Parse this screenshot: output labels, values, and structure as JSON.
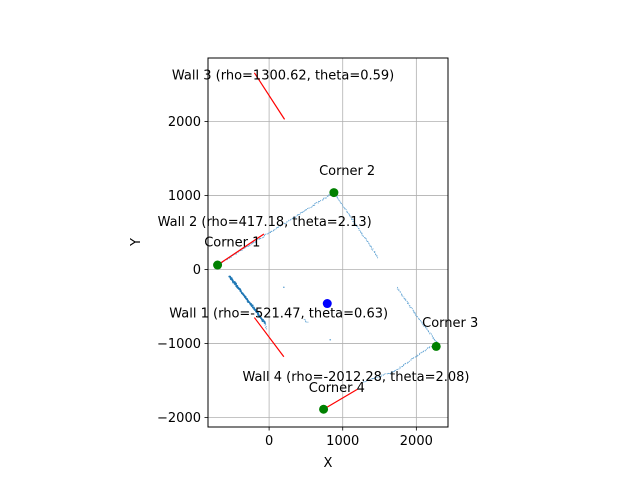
{
  "chart_data": {
    "type": "scatter",
    "xlabel": "X",
    "ylabel": "Y",
    "xlim": [
      -830,
      2430
    ],
    "ylim": [
      -2130,
      2860
    ],
    "grid": true,
    "xticks": [
      0,
      1000,
      2000
    ],
    "xtick_labels": [
      "0",
      "1000",
      "2000"
    ],
    "yticks": [
      -2000,
      -1000,
      0,
      1000,
      2000
    ],
    "ytick_labels": [
      "−2000",
      "−1000",
      "0",
      "1000",
      "2000"
    ],
    "colors": {
      "scan_points": "#5fa2d3",
      "dense_points": "#1f77b4",
      "wall_lines": "#ff0000",
      "corners": "#008000",
      "robot": "#0000ff"
    },
    "scan_segments": [
      {
        "from": [
          -700,
          60
        ],
        "to": [
          880,
          1040
        ],
        "dense": false
      },
      {
        "from": [
          880,
          1040
        ],
        "to": [
          1480,
          160
        ],
        "dense": false
      },
      {
        "from": [
          -540,
          -90
        ],
        "to": [
          -60,
          -720
        ],
        "dense": true
      },
      {
        "from": [
          -60,
          -720
        ],
        "to": [
          -40,
          -800
        ],
        "dense": false
      },
      {
        "from": [
          1740,
          -250
        ],
        "to": [
          2000,
          -620
        ],
        "dense": false
      },
      {
        "from": [
          2000,
          -620
        ],
        "to": [
          2290,
          -1000
        ],
        "dense": false
      },
      {
        "from": [
          2200,
          -1040
        ],
        "to": [
          1700,
          -1380
        ],
        "dense": false
      },
      {
        "from": [
          1700,
          -1380
        ],
        "to": [
          1280,
          -1520
        ],
        "dense": false
      },
      {
        "from": [
          480,
          -680
        ],
        "to": [
          520,
          -720
        ],
        "dense": false
      }
    ],
    "scan_dots": [
      [
        200,
        -240
      ],
      [
        830,
        -950
      ]
    ],
    "walls": [
      {
        "label": "Wall 1 (rho=-521.47, theta=0.63)",
        "from": [
          -200,
          -650
        ],
        "to": [
          200,
          -1180
        ],
        "label_at": [
          130,
          -650
        ]
      },
      {
        "label": "Wall 2 (rho=417.18, theta=2.13)",
        "from": [
          -700,
          60
        ],
        "to": [
          -70,
          480
        ],
        "label_at": [
          -60,
          590
        ]
      },
      {
        "label": "Wall 3 (rho=1300.62, theta=0.59)",
        "from": [
          -200,
          2660
        ],
        "to": [
          210,
          2030
        ],
        "label_at": [
          190,
          2570
        ]
      },
      {
        "label": "Wall 4 (rho=-2012.28, theta=2.08)",
        "from": [
          740,
          -1890
        ],
        "to": [
          1200,
          -1620
        ],
        "label_at": [
          1180,
          -1510
        ]
      }
    ],
    "corners": [
      {
        "label": "Corner 1",
        "point": [
          -700,
          60
        ],
        "label_at": [
          -500,
          310
        ]
      },
      {
        "label": "Corner 2",
        "point": [
          880,
          1040
        ],
        "label_at": [
          1060,
          1280
        ]
      },
      {
        "label": "Corner 3",
        "point": [
          2270,
          -1040
        ],
        "label_at": [
          2460,
          -780
        ]
      },
      {
        "label": "Corner 4",
        "point": [
          740,
          -1890
        ],
        "label_at": [
          920,
          -1660
        ]
      }
    ],
    "robot": [
      790,
      -460
    ]
  }
}
